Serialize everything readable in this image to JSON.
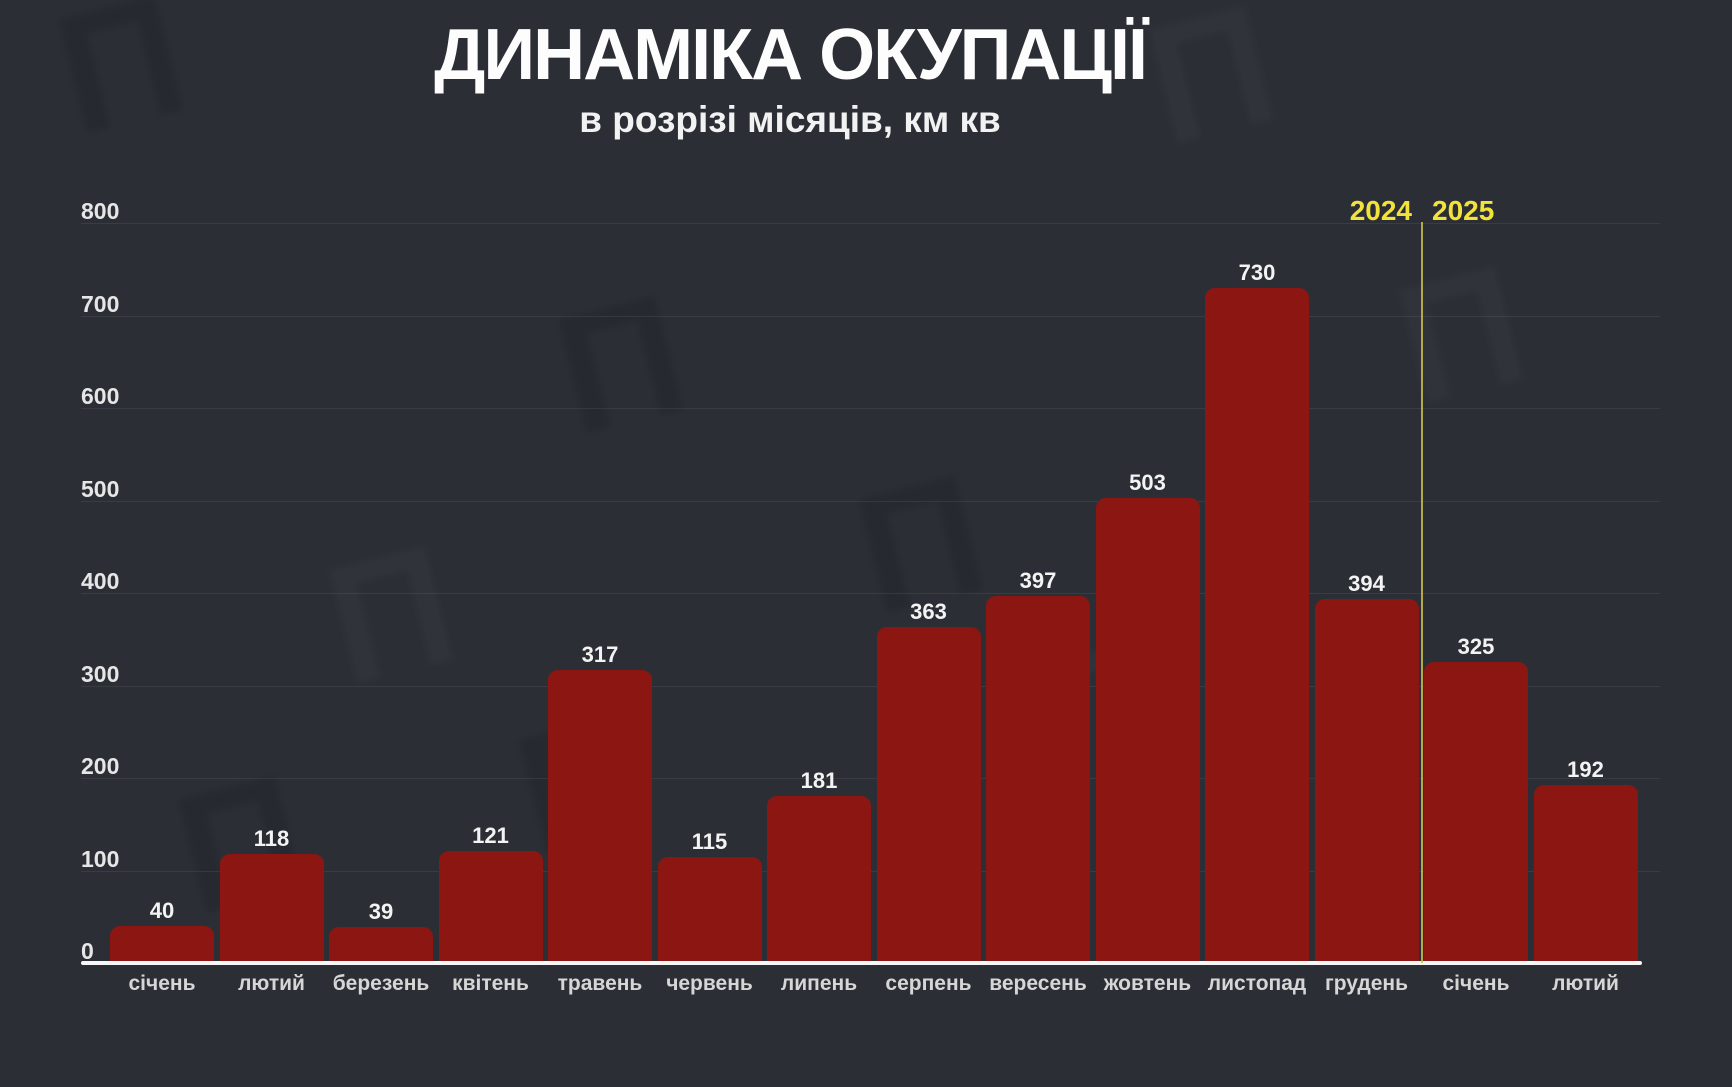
{
  "title": "ДИНАМІКА ОКУПАЦІЇ",
  "subtitle": "в розрізі місяців, км кв",
  "year_divider": {
    "left_label": "2024",
    "right_label": "2025",
    "after_category_index": 11,
    "label_color": "#f1e33b",
    "line_color": "#cdbf45"
  },
  "chart_data": {
    "type": "bar",
    "title": "ДИНАМІКА ОКУПАЦІЇ",
    "subtitle": "в розрізі місяців, км кв",
    "categories": [
      "січень",
      "лютий",
      "березень",
      "квітень",
      "травень",
      "червень",
      "липень",
      "серпень",
      "вересень",
      "жовтень",
      "листопад",
      "грудень",
      "січень",
      "лютий"
    ],
    "values": [
      40,
      118,
      39,
      121,
      317,
      115,
      181,
      363,
      397,
      503,
      730,
      394,
      325,
      192
    ],
    "xlabel": "",
    "ylabel": "",
    "ylim": [
      0,
      800
    ],
    "ytick_step": 100,
    "yticks": [
      0,
      100,
      200,
      300,
      400,
      500,
      600,
      700,
      800
    ],
    "grid": true,
    "legend": false,
    "value_labels": true,
    "bar_color": "#8c1712"
  },
  "colors": {
    "background": "#2b2e35",
    "bar": "#8c1712",
    "axis_line": "#f7f7f7",
    "gridline_alpha": "rgba(255,255,255,0.07)",
    "tick_text": "#e6e6e6",
    "value_text": "#f3f3f3",
    "month_text": "#d6d6d6",
    "accent_yellow": "#f1e33b"
  },
  "decorations": {
    "watermark_icon": "broadcaster-logo-smudge",
    "watermark_glyph": "П"
  }
}
